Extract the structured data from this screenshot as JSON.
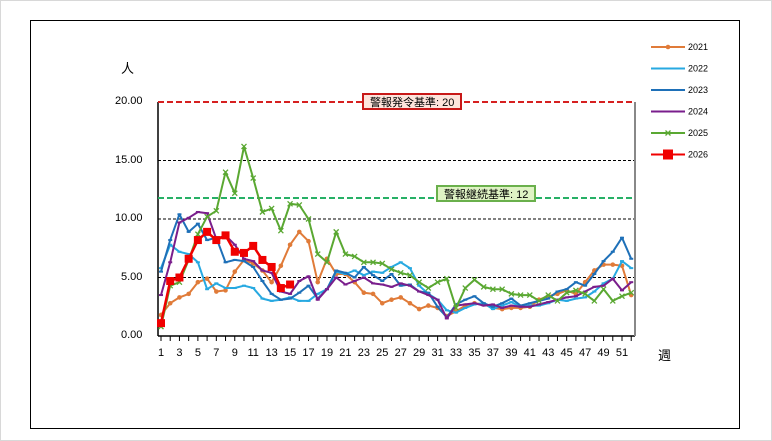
{
  "chart_data": {
    "type": "line",
    "title": "",
    "xlabel": "週",
    "ylabel": "人",
    "ylim": [
      0,
      20
    ],
    "yticks": [
      "0.00",
      "5.00",
      "10.00",
      "15.00",
      "20.00"
    ],
    "xticks": [
      "1",
      "3",
      "5",
      "7",
      "9",
      "11",
      "13",
      "15",
      "17",
      "19",
      "21",
      "23",
      "25",
      "27",
      "29",
      "31",
      "33",
      "35",
      "37",
      "39",
      "41",
      "43",
      "45",
      "47",
      "49",
      "51"
    ],
    "grid": true,
    "legend_position": "right",
    "thresholds": [
      {
        "label": "警報発令基準: 20",
        "value": 20,
        "color": "#d62020"
      },
      {
        "label": "警報継続基準: 12",
        "value": 11.8,
        "color": "#27b066"
      }
    ],
    "series": [
      {
        "name": "2021",
        "color": "#e07b39",
        "marker": "circle",
        "values": [
          1.8,
          2.8,
          3.3,
          3.6,
          4.6,
          4.9,
          3.8,
          3.9,
          5.5,
          6.5,
          6.2,
          5.6,
          4.6,
          6.0,
          7.8,
          8.9,
          8.1,
          4.6,
          6.6,
          5.3,
          5.3,
          4.6,
          3.7,
          3.6,
          2.8,
          3.1,
          3.3,
          2.8,
          2.3,
          2.6,
          2.4,
          1.7,
          2.1,
          2.6,
          2.8,
          2.7,
          2.4,
          2.3,
          2.4,
          2.4,
          2.5,
          3.1,
          3.4,
          3.6,
          3.9,
          3.6,
          4.6,
          5.6,
          6.1,
          6.1,
          6.0,
          3.5
        ]
      },
      {
        "name": "2022",
        "color": "#27a9e1",
        "marker": "dash",
        "values": [
          5.8,
          7.8,
          7.2,
          7.0,
          6.3,
          4.0,
          4.5,
          4.1,
          4.1,
          4.3,
          4.1,
          3.2,
          3.0,
          3.1,
          3.3,
          3.0,
          3.0,
          3.6,
          4.0,
          5.5,
          5.3,
          5.6,
          5.2,
          5.5,
          5.4,
          5.9,
          6.3,
          5.8,
          4.3,
          3.6,
          3.1,
          2.2,
          2.0,
          2.4,
          2.7,
          2.8,
          2.3,
          2.6,
          2.9,
          2.5,
          2.6,
          2.6,
          2.8,
          3.1,
          3.0,
          3.2,
          3.3,
          3.8,
          4.5,
          4.9,
          6.4,
          5.8
        ]
      },
      {
        "name": "2023",
        "color": "#1e70b8",
        "marker": "dash",
        "values": [
          5.5,
          8.2,
          10.4,
          8.9,
          9.6,
          8.2,
          8.4,
          6.3,
          6.5,
          6.4,
          5.9,
          4.7,
          3.6,
          3.1,
          3.2,
          3.7,
          4.3,
          3.2,
          4.0,
          5.6,
          5.4,
          5.0,
          5.9,
          5.2,
          4.7,
          5.3,
          4.3,
          4.4,
          3.8,
          3.7,
          2.5,
          1.6,
          2.7,
          3.1,
          3.4,
          2.8,
          2.5,
          2.8,
          3.2,
          2.6,
          2.8,
          3.0,
          3.2,
          3.8,
          4.0,
          4.6,
          4.3,
          5.3,
          6.4,
          7.2,
          8.4,
          6.6
        ]
      },
      {
        "name": "2024",
        "color": "#7a1e8c",
        "marker": "dash",
        "values": [
          3.5,
          6.3,
          9.7,
          10.1,
          10.6,
          10.5,
          8.3,
          8.6,
          7.8,
          6.6,
          6.4,
          5.6,
          5.4,
          3.8,
          3.6,
          4.7,
          5.1,
          3.1,
          4.0,
          5.0,
          4.4,
          4.7,
          5.0,
          4.5,
          4.4,
          4.2,
          4.5,
          4.3,
          3.8,
          3.5,
          3.1,
          1.5,
          2.6,
          2.7,
          2.8,
          2.6,
          2.7,
          2.4,
          2.6,
          2.5,
          2.5,
          2.7,
          2.9,
          3.1,
          3.3,
          3.4,
          3.8,
          4.2,
          4.3,
          4.9,
          3.9,
          4.6
        ]
      },
      {
        "name": "2025",
        "color": "#5aa832",
        "marker": "x",
        "values": [
          0.8,
          4.3,
          4.6,
          6.5,
          8.7,
          10.2,
          10.7,
          14.0,
          12.2,
          16.2,
          13.5,
          10.6,
          10.9,
          9.0,
          11.3,
          11.2,
          10.0,
          7.0,
          6.3,
          8.9,
          7.0,
          6.8,
          6.3,
          6.3,
          6.2,
          5.7,
          5.4,
          5.2,
          4.6,
          4.1,
          4.6,
          4.9,
          2.4,
          4.1,
          4.8,
          4.2,
          4.0,
          4.0,
          3.6,
          3.5,
          3.5,
          3.0,
          3.5,
          3.0,
          3.7,
          3.9,
          3.6,
          3.0,
          4.0,
          3.0,
          3.4,
          3.7
        ]
      },
      {
        "name": "2026",
        "color": "#f00000",
        "marker": "square",
        "values": [
          1.1,
          4.7,
          5.0,
          6.6,
          8.2,
          8.9,
          8.2,
          8.6,
          7.2,
          7.1,
          7.7,
          6.5,
          5.9,
          4.1,
          4.4
        ]
      }
    ]
  },
  "axis": {
    "y_unit": "人",
    "x_unit": "週",
    "y_labels": [
      "20.00",
      "15.00",
      "10.00",
      "5.00",
      "0.00"
    ]
  },
  "badges": {
    "alert": "警報発令基準: 20",
    "continue": "警報継続基準: 12"
  },
  "legend": [
    "2021",
    "2022",
    "2023",
    "2024",
    "2025",
    "2026"
  ]
}
